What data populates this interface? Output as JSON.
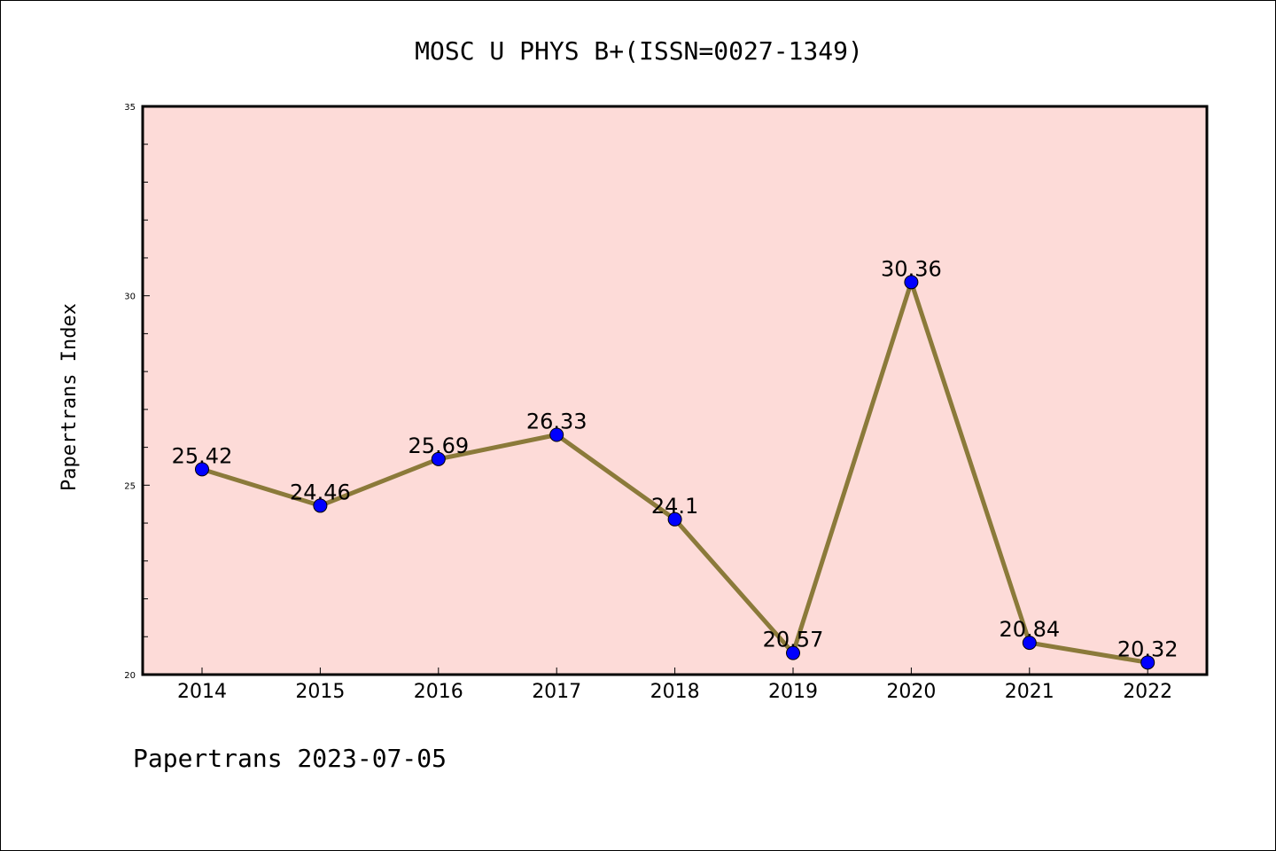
{
  "chart_data": {
    "type": "line",
    "title": "MOSC U PHYS B+(ISSN=0027-1349)",
    "ylabel": "Papertrans Index",
    "xlabel": "",
    "footer": "Papertrans 2023-07-05",
    "categories": [
      "2014",
      "2015",
      "2016",
      "2017",
      "2018",
      "2019",
      "2020",
      "2021",
      "2022"
    ],
    "values": [
      25.42,
      24.46,
      25.69,
      26.33,
      24.1,
      20.57,
      30.36,
      20.84,
      20.32
    ],
    "value_labels": [
      "25.42",
      "24.46",
      "25.69",
      "26.33",
      "24.1",
      "20.57",
      "30.36",
      "20.84",
      "20.32"
    ],
    "ylim": [
      20,
      35
    ],
    "yticks": [
      "20",
      "25",
      "30",
      "35"
    ],
    "grid": false,
    "legend": "none",
    "colors": {
      "plot_background": "#fddbd8",
      "line": "#8b7a3a",
      "marker": "#0000ff"
    }
  }
}
